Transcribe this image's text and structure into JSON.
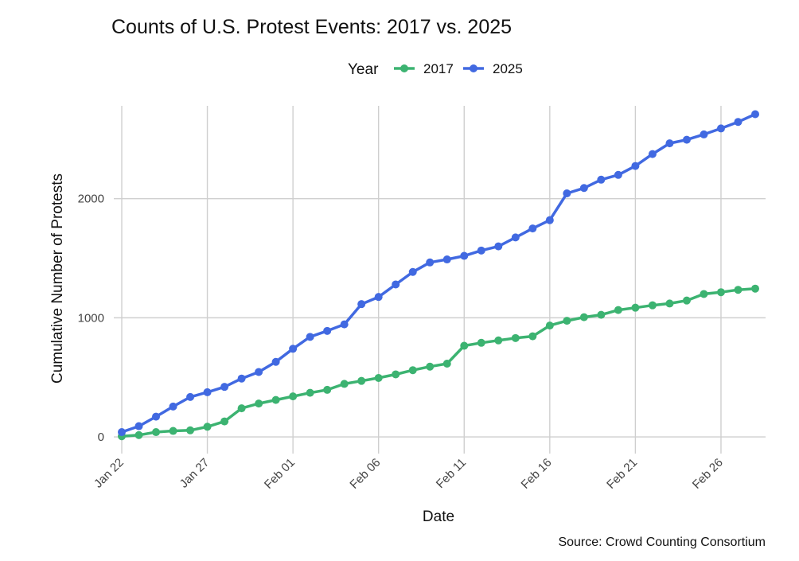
{
  "chart_data": {
    "type": "line",
    "title": "Counts of U.S. Protest Events: 2017 vs. 2025",
    "xlabel": "Date",
    "ylabel": "Cumulative Number of Protests",
    "caption": "Source: Crowd Counting Consortium",
    "legend": {
      "title": "Year",
      "position": "top"
    },
    "x_tick_labels": [
      "Jan 22",
      "Jan 27",
      "Feb 01",
      "Feb 06",
      "Feb 11",
      "Feb 16",
      "Feb 21",
      "Feb 26"
    ],
    "y_ticks": [
      0,
      1000,
      2000
    ],
    "ylim": [
      -60,
      2780
    ],
    "grid": true,
    "x": [
      "Jan 22",
      "Jan 23",
      "Jan 24",
      "Jan 25",
      "Jan 26",
      "Jan 27",
      "Jan 28",
      "Jan 29",
      "Jan 30",
      "Jan 31",
      "Feb 01",
      "Feb 02",
      "Feb 03",
      "Feb 04",
      "Feb 05",
      "Feb 06",
      "Feb 07",
      "Feb 08",
      "Feb 09",
      "Feb 10",
      "Feb 11",
      "Feb 12",
      "Feb 13",
      "Feb 14",
      "Feb 15",
      "Feb 16",
      "Feb 17",
      "Feb 18",
      "Feb 19",
      "Feb 20",
      "Feb 21",
      "Feb 22",
      "Feb 23",
      "Feb 24",
      "Feb 25",
      "Feb 26",
      "Feb 27",
      "Feb 28"
    ],
    "series": [
      {
        "name": "2017",
        "color": "#3cb371",
        "values": [
          5,
          15,
          40,
          50,
          55,
          85,
          130,
          240,
          280,
          310,
          340,
          370,
          395,
          445,
          470,
          495,
          525,
          560,
          590,
          615,
          765,
          790,
          810,
          830,
          845,
          935,
          975,
          1005,
          1025,
          1065,
          1085,
          1105,
          1120,
          1145,
          1200,
          1215,
          1235,
          1245
        ]
      },
      {
        "name": "2025",
        "color": "#4169e1",
        "values": [
          40,
          90,
          170,
          255,
          335,
          375,
          420,
          490,
          545,
          630,
          740,
          840,
          890,
          945,
          1115,
          1175,
          1280,
          1385,
          1465,
          1490,
          1520,
          1565,
          1600,
          1675,
          1750,
          1820,
          2045,
          2090,
          2160,
          2200,
          2275,
          2375,
          2465,
          2495,
          2540,
          2590,
          2645,
          2710
        ]
      }
    ]
  }
}
